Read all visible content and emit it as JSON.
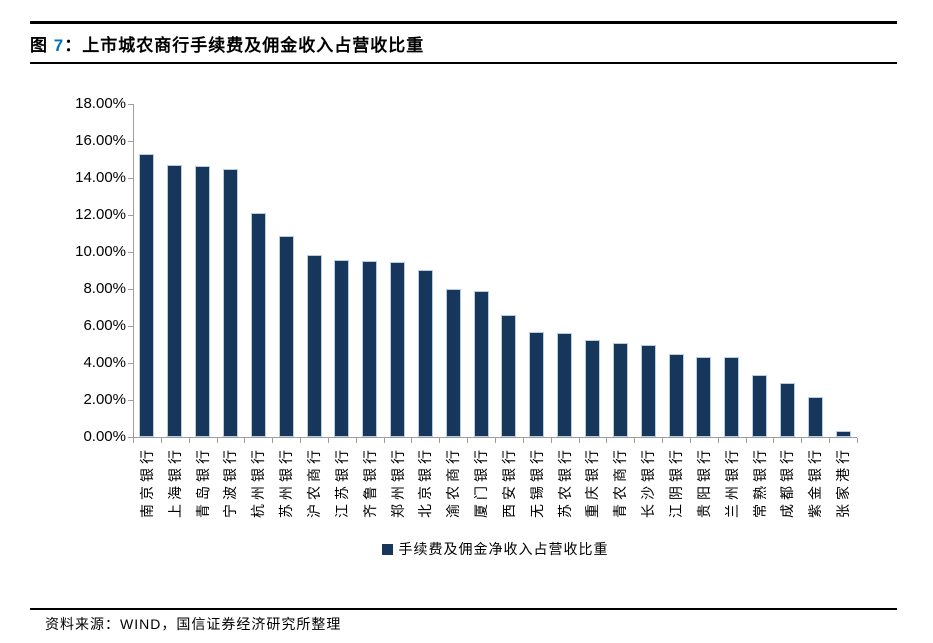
{
  "figure": {
    "title_prefix": "图 ",
    "title_number": "7",
    "title_separator": "：",
    "title_text": "上市城农商行手续费及佣金收入占营收比重",
    "source_text": "资料来源：WIND，国信证券经济研究所整理"
  },
  "legend": {
    "label": "手续费及佣金净收入占营收比重"
  },
  "colors": {
    "bar_fill": "#16365C",
    "bar_border": "#B8CCE4",
    "axis_gray": "#9E9E9E",
    "title_number_blue": "#0070C0",
    "rule_black": "#000000"
  },
  "chart_data": {
    "type": "bar",
    "title": "上市城农商行手续费及佣金收入占营收比重",
    "legend_entries": [
      "手续费及佣金净收入占营收比重"
    ],
    "categories": [
      "南京银行",
      "上海银行",
      "青岛银行",
      "宁波银行",
      "杭州银行",
      "苏州银行",
      "沪农商行",
      "江苏银行",
      "齐鲁银行",
      "郑州银行",
      "北京银行",
      "渝农商行",
      "厦门银行",
      "西安银行",
      "无锡银行",
      "苏农银行",
      "重庆银行",
      "青农商行",
      "长沙银行",
      "江阴银行",
      "贵阳银行",
      "兰州银行",
      "常熟银行",
      "成都银行",
      "紫金银行",
      "张家港行"
    ],
    "values": [
      15.3,
      14.7,
      14.65,
      14.5,
      12.1,
      10.85,
      9.85,
      9.55,
      9.5,
      9.45,
      9.05,
      8.0,
      7.9,
      6.6,
      5.65,
      5.6,
      5.25,
      5.1,
      4.95,
      4.5,
      4.35,
      4.3,
      3.35,
      2.9,
      2.15,
      0.3
    ],
    "value_unit": "%",
    "xlabel": "",
    "ylabel": "",
    "ylim": [
      0,
      18
    ],
    "ytick_step": 2,
    "yticks": [
      "18.00%",
      "16.00%",
      "14.00%",
      "12.00%",
      "10.00%",
      "8.00%",
      "6.00%",
      "4.00%",
      "2.00%",
      "0.00%"
    ],
    "grid": false,
    "legend_position": "bottom-center"
  }
}
